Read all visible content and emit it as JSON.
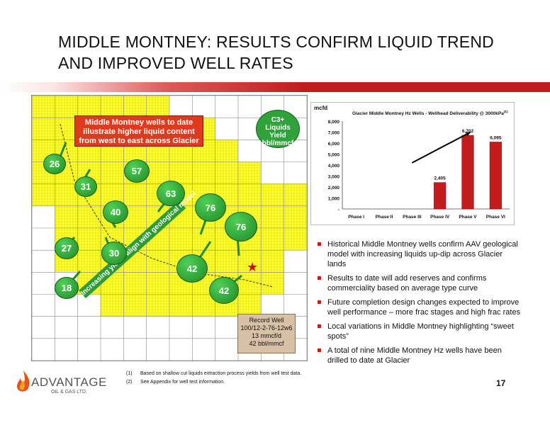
{
  "title": "MIDDLE MONTNEY: RESULTS CONFIRM LIQUID TREND AND IMPROVED WELL RATES",
  "map": {
    "callout": "Middle Montney wells to date illustrate higher liquid content from west to east across Glacier",
    "c3_line1": "C3+",
    "c3_line2": "Liquids",
    "c3_line3": "Yield",
    "c3_line4": "bbl/mmcf",
    "yields_arrow": "Increasing yields align with geological model",
    "record_line1": "Record Well",
    "record_line2": "100/12-2-76-12w6",
    "record_line3": "13 mmcf/d",
    "record_line4": "42 bbl/mmcf",
    "bubbles": [
      {
        "label": "26"
      },
      {
        "label": "31"
      },
      {
        "label": "57"
      },
      {
        "label": "63"
      },
      {
        "label": "40"
      },
      {
        "label": "76"
      },
      {
        "label": "76"
      },
      {
        "label": "27"
      },
      {
        "label": "30"
      },
      {
        "label": "42"
      },
      {
        "label": "18"
      },
      {
        "label": "42"
      }
    ]
  },
  "chart_data": {
    "type": "bar",
    "title": "Glacier Middle Montney Hz Wells - Wellhead Deliverability @ 3000kPa",
    "title_sup": "(1)",
    "ylabel": "mcfd",
    "ylim": [
      0,
      8000
    ],
    "yticks": [
      "-",
      "1,000",
      "2,000",
      "3,000",
      "4,000",
      "5,000",
      "6,000",
      "7,000",
      "8,000"
    ],
    "categories": [
      "Phase I",
      "Phase II",
      "Phase III",
      "Phase IV",
      "Phase V",
      "Phase VI"
    ],
    "values": [
      0,
      0,
      0,
      2405,
      6702,
      6095
    ],
    "value_labels": [
      "",
      "",
      "",
      "2,405",
      "6,702",
      "6,095"
    ],
    "bar_color": "#c41c1c",
    "trend_arrow": true
  },
  "bullets": [
    "Historical Middle Montney wells confirm AAV geological model with increasing liquids up-dip across Glacier lands",
    "Results to date will add reserves and confirms commerciality based on average type curve",
    "Future completion design changes expected to improve well performance – more frac stages and high frac rates",
    "Local variations in Middle Montney highlighting “sweet spots”",
    "A total of nine Middle Montney Hz wells have been drilled to date at Glacier"
  ],
  "footnotes": [
    {
      "num": "(1)",
      "text": "Based on shallow cut liquids extraction process yields from well test data."
    },
    {
      "num": "(2)",
      "text": "See Appendix for well test information."
    }
  ],
  "logo": {
    "name": "ADVANTAGE",
    "sub": "OIL & GAS LTD."
  },
  "page_number": "17",
  "colors": {
    "accent": "#c41c1c",
    "bubble": "#2fa33a",
    "land": "#ffff33"
  }
}
